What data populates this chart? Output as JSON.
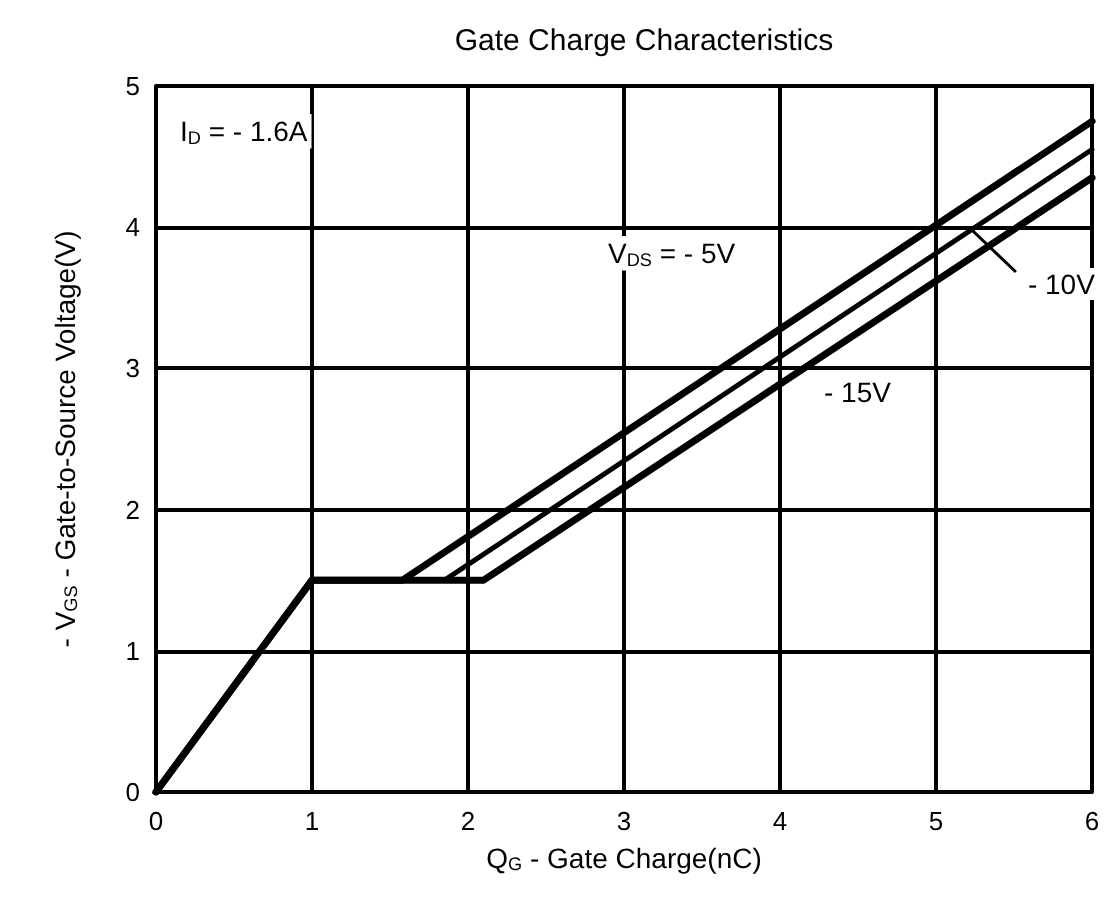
{
  "chart_data": {
    "type": "line",
    "title": "Gate Charge Characteristics",
    "xlabel": "Q$_{G}$ - Gate Charge(nC)",
    "ylabel": "- V$_{GS}$ - Gate-to-Source Voltage(V)",
    "xlim": [
      0,
      6
    ],
    "xticks": [
      0,
      1,
      2,
      3,
      4,
      5,
      6
    ],
    "ylim": [
      0,
      5
    ],
    "yticks": [
      0,
      1,
      2,
      3,
      4,
      5
    ],
    "grid": true,
    "marker": "none",
    "line_style": "solid",
    "series": [
      {
        "color": "#000000",
        "x": [
          0,
          1,
          1.58,
          6
        ],
        "values": [
          0,
          1.5,
          1.5,
          4.75
        ]
      },
      {
        "color": "#000000",
        "x": [
          0,
          1,
          1.85,
          6
        ],
        "values": [
          0,
          1.5,
          1.5,
          4.55
        ]
      },
      {
        "color": "#000000",
        "x": [
          0,
          1,
          2.1,
          6
        ],
        "values": [
          0,
          1.5,
          1.5,
          4.35
        ]
      }
    ],
    "annotations": [
      "I$_{D}$ = - 1.6A",
      "V$_{DS}$ = - 5V",
      {
        "text": "- 10V",
        "x": 5.23,
        "y": 3.98
      },
      "- 15V"
    ]
  }
}
